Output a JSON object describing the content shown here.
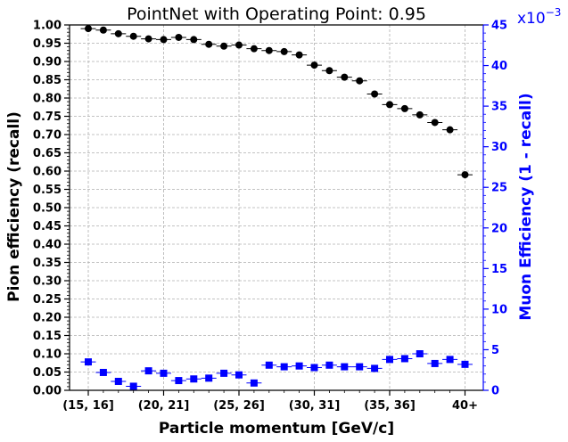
{
  "chart_data": {
    "type": "scatter",
    "title": "PointNet with Operating Point: 0.95",
    "xlabel": "Particle momentum [GeV/c]",
    "ylabel_left": "Pion efficiency (recall)",
    "ylabel_right": "Muon Efficiency (1 - recall)",
    "right_axis_multiplier": "x10",
    "right_axis_exponent": "−3",
    "categories": [
      "(15, 16]",
      "(16, 17]",
      "(17, 18]",
      "(18, 19]",
      "(19, 20]",
      "(20, 21]",
      "(21, 22]",
      "(22, 23]",
      "(23, 24]",
      "(24, 25]",
      "(25, 26]",
      "(26, 27]",
      "(27, 28]",
      "(28, 29]",
      "(29, 30]",
      "(30, 31]",
      "(31, 32]",
      "(32, 33]",
      "(33, 34]",
      "(34, 35]",
      "(35, 36]",
      "(36, 37]",
      "(37, 38]",
      "(38, 39]",
      "(39, 40]",
      "40+"
    ],
    "x_tick_labels": [
      {
        "index": 0,
        "label": "(15, 16]"
      },
      {
        "index": 5,
        "label": "(20, 21]"
      },
      {
        "index": 10,
        "label": "(25, 26]"
      },
      {
        "index": 15,
        "label": "(30, 31]"
      },
      {
        "index": 20,
        "label": "(35, 36]"
      },
      {
        "index": 25,
        "label": "40+"
      }
    ],
    "y_left_ticks": [
      "0.00",
      "0.05",
      "0.10",
      "0.15",
      "0.20",
      "0.25",
      "0.30",
      "0.35",
      "0.40",
      "0.45",
      "0.50",
      "0.55",
      "0.60",
      "0.65",
      "0.70",
      "0.75",
      "0.80",
      "0.85",
      "0.90",
      "0.95",
      "1.00"
    ],
    "y_right_ticks": [
      "0",
      "5",
      "10",
      "15",
      "20",
      "25",
      "30",
      "35",
      "40",
      "45"
    ],
    "ylim_left": [
      0,
      1.0
    ],
    "ylim_right": [
      0,
      45
    ],
    "grid": true,
    "series": [
      {
        "axis": "left",
        "color": "#000000",
        "marker": "circle",
        "values": [
          0.99,
          0.986,
          0.976,
          0.969,
          0.962,
          0.96,
          0.966,
          0.96,
          0.947,
          0.942,
          0.945,
          0.935,
          0.93,
          0.927,
          0.918,
          0.89,
          0.875,
          0.857,
          0.847,
          0.811,
          0.782,
          0.771,
          0.754,
          0.733,
          0.713,
          0.59
        ]
      },
      {
        "axis": "right",
        "color": "#0000ff",
        "marker": "square",
        "values": [
          3.5,
          2.2,
          1.1,
          0.5,
          2.4,
          2.1,
          1.2,
          1.4,
          1.5,
          2.1,
          1.9,
          0.9,
          3.1,
          2.9,
          3.0,
          2.8,
          3.1,
          2.9,
          2.9,
          2.7,
          3.8,
          3.9,
          4.5,
          3.3,
          3.8,
          3.2
        ]
      }
    ]
  }
}
